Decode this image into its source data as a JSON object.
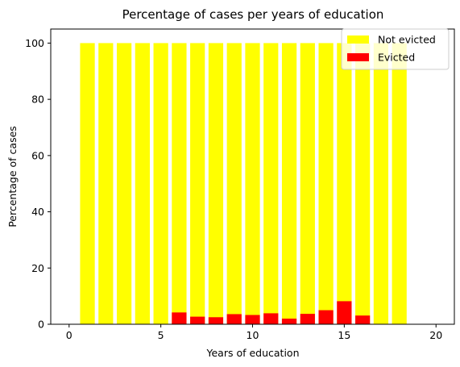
{
  "chart_data": {
    "type": "bar",
    "stacked": "overlaid",
    "title": "Percentage of cases per years of education",
    "xlabel": "Years of education",
    "ylabel": "Percentage of cases",
    "xlim": [
      -1,
      21
    ],
    "ylim": [
      0,
      105
    ],
    "xticks": [
      "0",
      "5",
      "10",
      "15",
      "20"
    ],
    "yticks": [
      "0",
      "20",
      "40",
      "60",
      "80",
      "100"
    ],
    "grid": false,
    "legend_position": "top-right",
    "x": [
      1,
      2,
      3,
      4,
      5,
      6,
      7,
      8,
      9,
      10,
      11,
      12,
      13,
      14,
      15,
      16,
      17,
      18
    ],
    "series": [
      {
        "name": "Not evicted",
        "color": "#ffff00",
        "values": [
          100,
          100,
          100,
          100,
          100,
          100,
          100,
          100,
          100,
          100,
          100,
          100,
          100,
          100,
          100,
          100,
          100,
          100
        ]
      },
      {
        "name": "Evicted",
        "color": "#ff0000",
        "values": [
          0,
          0,
          0,
          0,
          0,
          4.2,
          2.7,
          2.5,
          3.6,
          3.3,
          3.9,
          2.0,
          3.7,
          5.0,
          8.2,
          3.1,
          0,
          0
        ]
      }
    ]
  }
}
